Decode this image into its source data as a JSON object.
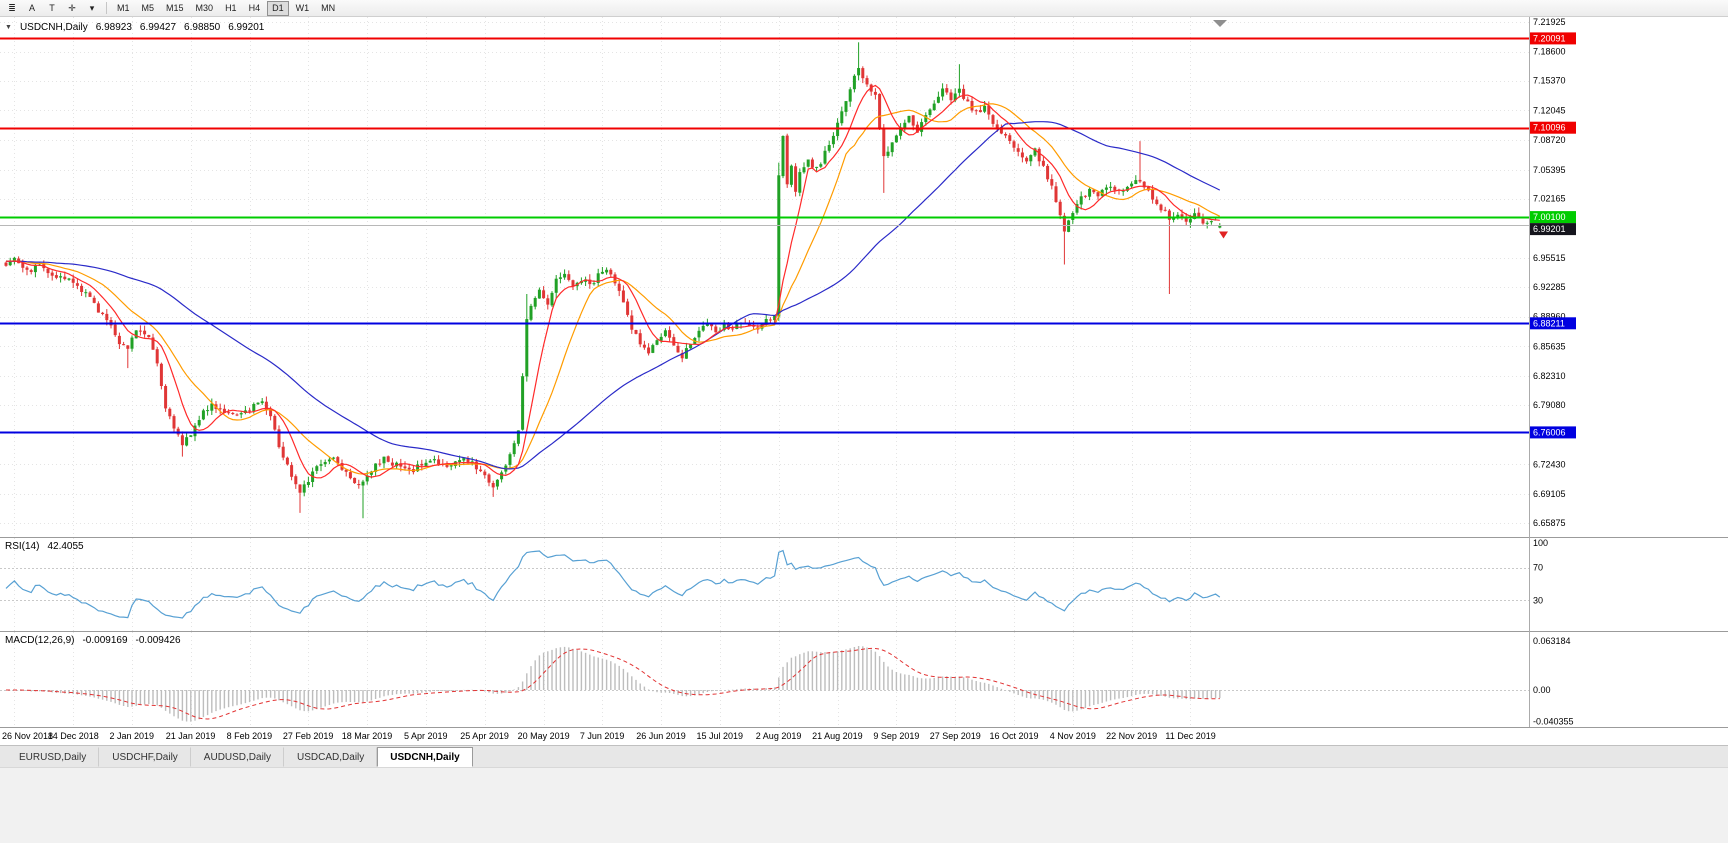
{
  "toolbar": {
    "icon_buttons": [
      {
        "name": "charts-list-icon",
        "glyph": "≣"
      },
      {
        "name": "annotate-arrow-button",
        "glyph": "A"
      },
      {
        "name": "text-label-button",
        "glyph": "T"
      },
      {
        "name": "crosshair-tool-button",
        "glyph": "✛"
      },
      {
        "name": "tools-dropdown-arrow-icon",
        "glyph": "▾"
      }
    ],
    "timeframes": [
      "M1",
      "M5",
      "M15",
      "M30",
      "H1",
      "H4",
      "D1",
      "W1",
      "MN"
    ],
    "active_timeframe": "D1"
  },
  "chart_header": {
    "caret": "▼",
    "symbol": "USDCNH,Daily",
    "open": "6.98923",
    "high": "6.99427",
    "low": "6.98850",
    "close": "6.99201"
  },
  "tabs": [
    {
      "label": "EURUSD,Daily",
      "active": false
    },
    {
      "label": "USDCHF,Daily",
      "active": false
    },
    {
      "label": "AUDUSD,Daily",
      "active": false
    },
    {
      "label": "USDCAD,Daily",
      "active": false
    },
    {
      "label": "USDCNH,Daily",
      "active": true
    }
  ],
  "colors": {
    "candle_up": "#21a126",
    "candle_down": "#e03636",
    "grid": "#e4e4e4",
    "current_price_line": "#b8b8b8",
    "current_badge": "#15151d"
  },
  "chart_data": {
    "type": "candlestick",
    "symbol": "USDCNH",
    "period": "Daily",
    "candle_count": 290,
    "last_candle": {
      "open": 6.98923,
      "high": 6.99427,
      "low": 6.9885,
      "close": 6.99201
    },
    "current_price": 6.99201,
    "current_price_label": "6.99201",
    "y_axis": {
      "ticks": [
        "7.21925",
        "7.18600",
        "7.15370",
        "7.12045",
        "7.08720",
        "7.05395",
        "7.02165",
        "6.95515",
        "6.92285",
        "6.88960",
        "6.85635",
        "6.82310",
        "6.79080",
        "6.72430",
        "6.69105",
        "6.65875"
      ]
    },
    "x_axis": {
      "labels": [
        "26 Nov 2018",
        "14 Dec 2018",
        "2 Jan 2019",
        "21 Jan 2019",
        "8 Feb 2019",
        "27 Feb 2019",
        "18 Mar 2019",
        "5 Apr 2019",
        "25 Apr 2019",
        "20 May 2019",
        "7 Jun 2019",
        "26 Jun 2019",
        "15 Jul 2019",
        "2 Aug 2019",
        "21 Aug 2019",
        "9 Sep 2019",
        "27 Sep 2019",
        "16 Oct 2019",
        "4 Nov 2019",
        "22 Nov 2019",
        "11 Dec 2019"
      ]
    },
    "horizontal_levels": [
      {
        "price": 7.20091,
        "label": "7.20091",
        "color": "#f00000",
        "width": 2
      },
      {
        "price": 7.10096,
        "label": "7.10096",
        "color": "#f00000",
        "width": 2
      },
      {
        "price": 7.001,
        "label": "7.00100",
        "color": "#00cc00",
        "width": 2
      },
      {
        "price": 6.88211,
        "label": "6.88211",
        "color": "#0000e0",
        "width": 2
      },
      {
        "price": 6.76006,
        "label": "6.76006",
        "color": "#0000e0",
        "width": 2
      }
    ],
    "moving_averages": [
      {
        "name": "medium",
        "period": 17,
        "color": "#ff9c00"
      },
      {
        "name": "slow",
        "period": 55,
        "color": "#2a2ac8"
      },
      {
        "name": "fast",
        "period": 8,
        "color": "#ff2a2a"
      }
    ],
    "price_path": [
      [
        0,
        6.948
      ],
      [
        2,
        6.958
      ],
      [
        5,
        6.94
      ],
      [
        8,
        6.948
      ],
      [
        12,
        6.935
      ],
      [
        16,
        6.928
      ],
      [
        20,
        6.91
      ],
      [
        24,
        6.885
      ],
      [
        27,
        6.862
      ],
      [
        29,
        6.856
      ],
      [
        31,
        6.876
      ],
      [
        34,
        6.87
      ],
      [
        36,
        6.838
      ],
      [
        38,
        6.79
      ],
      [
        40,
        6.762
      ],
      [
        42,
        6.748
      ],
      [
        44,
        6.76
      ],
      [
        46,
        6.776
      ],
      [
        49,
        6.792
      ],
      [
        52,
        6.784
      ],
      [
        55,
        6.776
      ],
      [
        58,
        6.788
      ],
      [
        61,
        6.796
      ],
      [
        63,
        6.78
      ],
      [
        65,
        6.744
      ],
      [
        68,
        6.712
      ],
      [
        70,
        6.696
      ],
      [
        72,
        6.708
      ],
      [
        75,
        6.726
      ],
      [
        78,
        6.732
      ],
      [
        81,
        6.716
      ],
      [
        84,
        6.702
      ],
      [
        87,
        6.718
      ],
      [
        90,
        6.73
      ],
      [
        93,
        6.724
      ],
      [
        96,
        6.716
      ],
      [
        99,
        6.724
      ],
      [
        102,
        6.73
      ],
      [
        105,
        6.72
      ],
      [
        108,
        6.73
      ],
      [
        111,
        6.726
      ],
      [
        114,
        6.712
      ],
      [
        116,
        6.7
      ],
      [
        118,
        6.714
      ],
      [
        120,
        6.736
      ],
      [
        122,
        6.76
      ],
      [
        123,
        6.825
      ],
      [
        124,
        6.888
      ],
      [
        125,
        6.905
      ],
      [
        127,
        6.92
      ],
      [
        129,
        6.906
      ],
      [
        131,
        6.93
      ],
      [
        133,
        6.94
      ],
      [
        135,
        6.922
      ],
      [
        137,
        6.932
      ],
      [
        139,
        6.925
      ],
      [
        141,
        6.936
      ],
      [
        143,
        6.941
      ],
      [
        145,
        6.928
      ],
      [
        147,
        6.904
      ],
      [
        149,
        6.878
      ],
      [
        151,
        6.86
      ],
      [
        153,
        6.848
      ],
      [
        155,
        6.864
      ],
      [
        157,
        6.872
      ],
      [
        159,
        6.854
      ],
      [
        161,
        6.846
      ],
      [
        163,
        6.862
      ],
      [
        165,
        6.874
      ],
      [
        167,
        6.88
      ],
      [
        169,
        6.871
      ],
      [
        171,
        6.88
      ],
      [
        173,
        6.875
      ],
      [
        175,
        6.884
      ],
      [
        177,
        6.879
      ],
      [
        179,
        6.875
      ],
      [
        181,
        6.884
      ],
      [
        183,
        6.892
      ],
      [
        184,
        7.05
      ],
      [
        185,
        7.09
      ],
      [
        186,
        7.04
      ],
      [
        187,
        7.058
      ],
      [
        188,
        7.032
      ],
      [
        189,
        7.048
      ],
      [
        191,
        7.062
      ],
      [
        193,
        7.055
      ],
      [
        195,
        7.072
      ],
      [
        197,
        7.09
      ],
      [
        199,
        7.118
      ],
      [
        201,
        7.146
      ],
      [
        203,
        7.166
      ],
      [
        205,
        7.15
      ],
      [
        207,
        7.138
      ],
      [
        209,
        7.068
      ],
      [
        211,
        7.084
      ],
      [
        213,
        7.104
      ],
      [
        215,
        7.112
      ],
      [
        217,
        7.096
      ],
      [
        219,
        7.112
      ],
      [
        221,
        7.128
      ],
      [
        223,
        7.142
      ],
      [
        225,
        7.135
      ],
      [
        227,
        7.145
      ],
      [
        229,
        7.128
      ],
      [
        231,
        7.118
      ],
      [
        233,
        7.125
      ],
      [
        235,
        7.106
      ],
      [
        237,
        7.094
      ],
      [
        239,
        7.086
      ],
      [
        241,
        7.074
      ],
      [
        243,
        7.064
      ],
      [
        245,
        7.076
      ],
      [
        247,
        7.056
      ],
      [
        249,
        7.034
      ],
      [
        251,
        7.006
      ],
      [
        252,
        6.988
      ],
      [
        254,
        7.004
      ],
      [
        256,
        7.022
      ],
      [
        258,
        7.032
      ],
      [
        260,
        7.024
      ],
      [
        262,
        7.036
      ],
      [
        264,
        7.028
      ],
      [
        266,
        7.032
      ],
      [
        268,
        7.04
      ],
      [
        270,
        7.044
      ],
      [
        272,
        7.03
      ],
      [
        274,
        7.014
      ],
      [
        276,
        7.006
      ],
      [
        277,
        6.996
      ],
      [
        279,
        7.002
      ],
      [
        281,
        6.997
      ],
      [
        283,
        7.004
      ],
      [
        285,
        6.995
      ],
      [
        287,
        6.999
      ],
      [
        289,
        6.992
      ]
    ],
    "wick_events": [
      [
        29,
        "low",
        6.832
      ],
      [
        42,
        "low",
        6.733
      ],
      [
        70,
        "low",
        6.67
      ],
      [
        85,
        "low",
        6.664
      ],
      [
        116,
        "low",
        6.688
      ],
      [
        124,
        "high",
        6.915
      ],
      [
        184,
        "high",
        7.062
      ],
      [
        203,
        "high",
        7.1965
      ],
      [
        209,
        "low",
        7.028
      ],
      [
        227,
        "high",
        7.172
      ],
      [
        252,
        "low",
        6.948
      ],
      [
        270,
        "high",
        7.086
      ],
      [
        277,
        "low",
        6.915
      ]
    ],
    "indicators": {
      "rsi": {
        "label": "RSI(14)",
        "value": "42.4055",
        "period": 14,
        "color": "#57a0d3",
        "levels": [
          70,
          30
        ],
        "scale_labels": [
          {
            "text": "100",
            "value": 100
          },
          {
            "text": "70",
            "value": 70
          },
          {
            "text": "30",
            "value": 30
          }
        ]
      },
      "macd": {
        "label": "MACD(12,26,9)",
        "value_main": "-0.009169",
        "value_signal": "-0.009426",
        "fast": 12,
        "slow": 26,
        "signal": 9,
        "histogram_color": "#bdbdbd",
        "signal_color": "#e23333",
        "scale_max": 0.063184,
        "scale_min": -0.040355,
        "scale_labels": [
          {
            "text": "0.063184",
            "value": 0.063184
          },
          {
            "text": "0.00",
            "value": 0
          },
          {
            "text": "-0.040355",
            "value": -0.040355
          }
        ]
      }
    }
  }
}
